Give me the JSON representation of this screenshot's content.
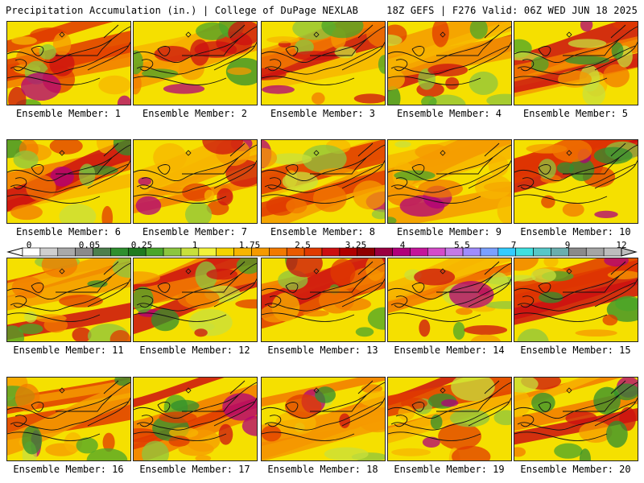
{
  "header": {
    "left_title": "Precipitation Accumulation (in.) | College of DuPage NEXLAB",
    "right_title": "18Z GEFS | F276 Valid: 06Z WED JUN 18 2025"
  },
  "colorbar": {
    "tick_labels": [
      "0",
      "0.05",
      "0.25",
      "1",
      "1.75",
      "2.5",
      "3.25",
      "4",
      "5.5",
      "7",
      "9",
      "12"
    ],
    "colors": [
      "#ffffff",
      "#cfcfcf",
      "#a9a9a9",
      "#8a8a8a",
      "#4d7f4d",
      "#2f8f2f",
      "#1f7a1f",
      "#4aa62a",
      "#8cc63f",
      "#c8e03c",
      "#f2f23a",
      "#f5d300",
      "#f7b500",
      "#f59a00",
      "#f27a00",
      "#ea5a00",
      "#e03a00",
      "#cc1010",
      "#b00000",
      "#8f0000",
      "#9a0040",
      "#b0007a",
      "#c4169a",
      "#d44cc8",
      "#c47ae6",
      "#9f8cff",
      "#7aa0ff",
      "#33ccff",
      "#3fe0e0",
      "#56c7c7",
      "#6aaeae",
      "#8a8a8a",
      "#a5a5a5",
      "#bdbdbd"
    ]
  },
  "panels": [
    {
      "label": "Ensemble Member: 1"
    },
    {
      "label": "Ensemble Member: 2"
    },
    {
      "label": "Ensemble Member: 3"
    },
    {
      "label": "Ensemble Member: 4"
    },
    {
      "label": "Ensemble Member: 5"
    },
    {
      "label": "Ensemble Member: 6"
    },
    {
      "label": "Ensemble Member: 7"
    },
    {
      "label": "Ensemble Member: 8"
    },
    {
      "label": "Ensemble Member: 9"
    },
    {
      "label": "Ensemble Member: 10"
    },
    {
      "label": "Ensemble Member: 11"
    },
    {
      "label": "Ensemble Member: 12"
    },
    {
      "label": "Ensemble Member: 13"
    },
    {
      "label": "Ensemble Member: 14"
    },
    {
      "label": "Ensemble Member: 15"
    },
    {
      "label": "Ensemble Member: 16"
    },
    {
      "label": "Ensemble Member: 17"
    },
    {
      "label": "Ensemble Member: 18"
    },
    {
      "label": "Ensemble Member: 19"
    },
    {
      "label": "Ensemble Member: 20"
    }
  ]
}
